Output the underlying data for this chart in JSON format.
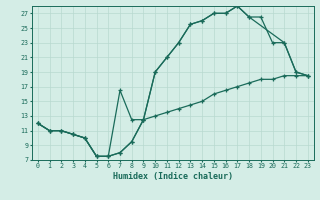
{
  "title": "",
  "xlabel": "Humidex (Indice chaleur)",
  "bg_color": "#d4ede6",
  "grid_color": "#b8d9d0",
  "line_color": "#1a6b5a",
  "xlim": [
    -0.5,
    23.5
  ],
  "ylim": [
    7,
    28
  ],
  "xticks": [
    0,
    1,
    2,
    3,
    4,
    5,
    6,
    7,
    8,
    9,
    10,
    11,
    12,
    13,
    14,
    15,
    16,
    17,
    18,
    19,
    20,
    21,
    22,
    23
  ],
  "yticks": [
    7,
    9,
    11,
    13,
    15,
    17,
    19,
    21,
    23,
    25,
    27
  ],
  "curve_upper_x": [
    0,
    1,
    2,
    3,
    4,
    5,
    6,
    7,
    8,
    9,
    10,
    11,
    12,
    13,
    14,
    15,
    16,
    17,
    18,
    21,
    22,
    23
  ],
  "curve_upper_y": [
    12,
    11,
    11,
    10.5,
    10,
    7.5,
    7.5,
    8,
    9.5,
    12.5,
    19,
    21,
    23,
    25.5,
    26,
    27,
    27,
    28,
    26.5,
    23,
    19,
    18.5
  ],
  "curve_mid_x": [
    0,
    1,
    2,
    3,
    4,
    5,
    6,
    7,
    8,
    9,
    10,
    11,
    12,
    13,
    14,
    15,
    16,
    17,
    18,
    19,
    20,
    21,
    22,
    23
  ],
  "curve_mid_y": [
    12,
    11,
    11,
    10.5,
    10,
    7.5,
    7.5,
    16.5,
    12.5,
    12.5,
    19,
    21,
    23,
    25.5,
    26,
    27,
    27,
    28,
    26.5,
    26.5,
    23,
    23,
    19,
    18.5
  ],
  "curve_low_x": [
    0,
    1,
    2,
    3,
    4,
    5,
    6,
    7,
    8,
    9,
    10,
    11,
    12,
    13,
    14,
    15,
    16,
    17,
    18,
    19,
    20,
    21,
    22,
    23
  ],
  "curve_low_y": [
    12,
    11,
    11,
    10.5,
    10,
    7.5,
    7.5,
    8,
    9.5,
    12.5,
    13,
    13.5,
    14,
    14.5,
    15,
    16,
    16.5,
    17,
    17.5,
    18,
    18,
    18.5,
    18.5,
    18.5
  ]
}
